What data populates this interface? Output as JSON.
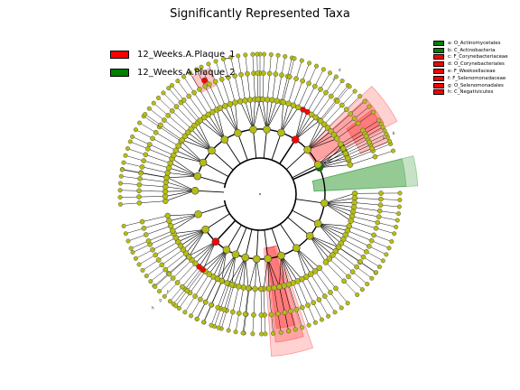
{
  "chart_data": {
    "type": "cladogram",
    "title": "Significantly Represented Taxa",
    "groups": [
      {
        "name": "12_Weeks.A.Plaque_1",
        "color": "#ff0000"
      },
      {
        "name": "12_Weeks.A.Plaque_2",
        "color": "#008000"
      }
    ],
    "taxa": [
      {
        "letter": "a",
        "label": "a: O_Actinomycetales",
        "group": 1
      },
      {
        "letter": "b",
        "label": "b: C_Actinobacteria",
        "group": 1
      },
      {
        "letter": "c",
        "label": "c: F_Corynebacteriaceae",
        "group": 0
      },
      {
        "letter": "d",
        "label": "d: O_Corynebacteriales",
        "group": 0
      },
      {
        "letter": "e",
        "label": "e: F_Weeksellaceae",
        "group": 0
      },
      {
        "letter": "f",
        "label": "f: F_Selenomonadaceae",
        "group": 0
      },
      {
        "letter": "g",
        "label": "g: O_Selenomonadales",
        "group": 0
      },
      {
        "letter": "h",
        "label": "h: C_Negativicutes",
        "group": 0
      }
    ],
    "colors": {
      "node": "#b5bd14",
      "edge": "#000000",
      "plaque1": "#ff0000",
      "plaque2": "#008000"
    }
  }
}
